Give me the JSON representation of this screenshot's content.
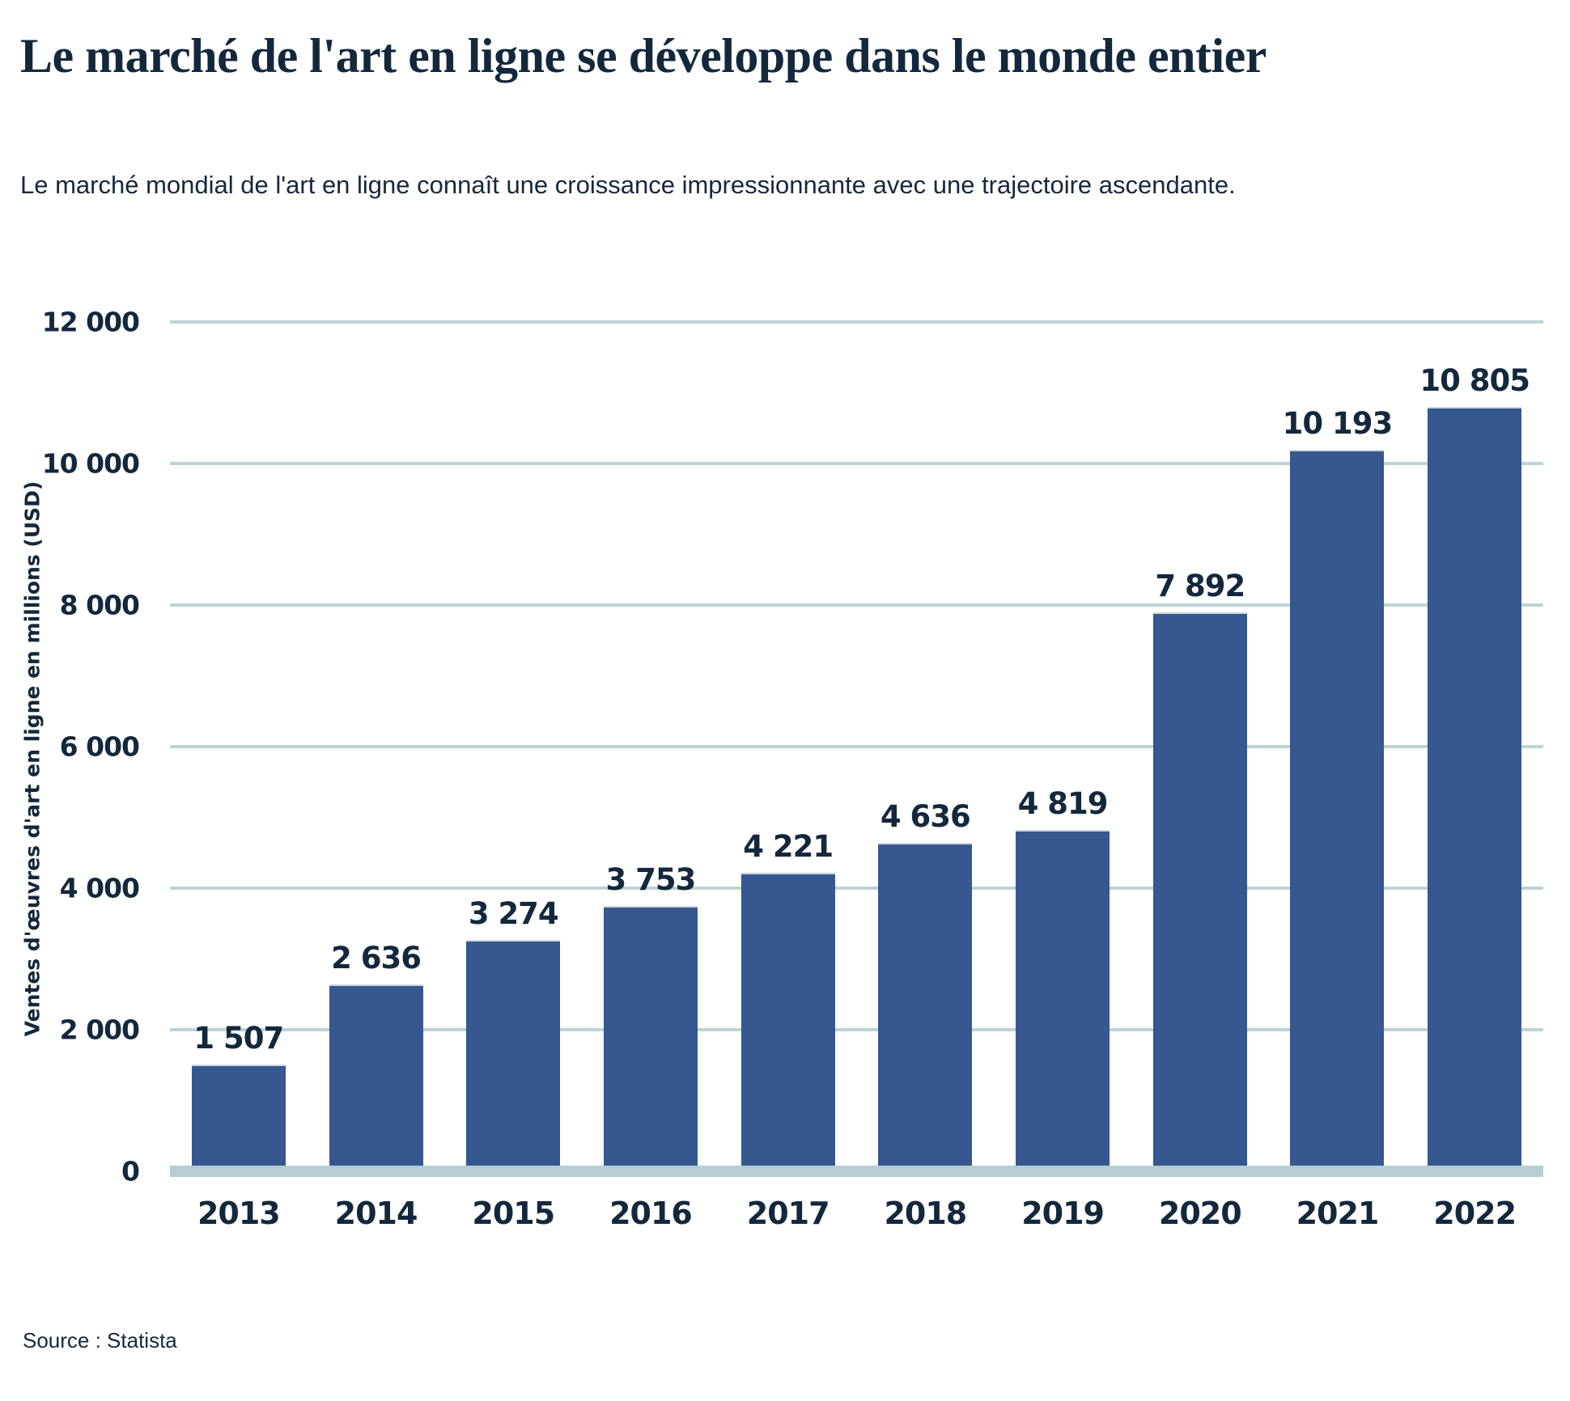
{
  "header": {
    "title": "Le marché de l'art en ligne se développe dans le monde entier",
    "subtitle": "Le marché mondial de l'art en ligne connaît une croissance impressionnante avec une trajectoire ascendante."
  },
  "source": "Source : Statista",
  "colors": {
    "bar": "#36578F",
    "gridline": "#bdd3d5",
    "baseline": "#b5ced1",
    "text": "#13283c"
  },
  "chart_data": {
    "type": "bar",
    "categories": [
      "2013",
      "2014",
      "2015",
      "2016",
      "2017",
      "2018",
      "2019",
      "2020",
      "2021",
      "2022"
    ],
    "values": [
      1507,
      2636,
      3274,
      3753,
      4221,
      4636,
      4819,
      7892,
      10193,
      10805
    ],
    "value_labels": [
      "1 507",
      "2 636",
      "3 274",
      "3 753",
      "4 221",
      "4 636",
      "4 819",
      "7 892",
      "10 193",
      "10 805"
    ],
    "title": "",
    "xlabel": "",
    "ylabel": "Ventes d'œuvres d'art en ligne en millions (USD)",
    "ylim": [
      0,
      12000
    ],
    "ytick_step": 2000,
    "ytick_labels": [
      "0",
      "2 000",
      "4 000",
      "6 000",
      "8 000",
      "10 000",
      "12 000"
    ],
    "grid": true,
    "legend": false
  }
}
